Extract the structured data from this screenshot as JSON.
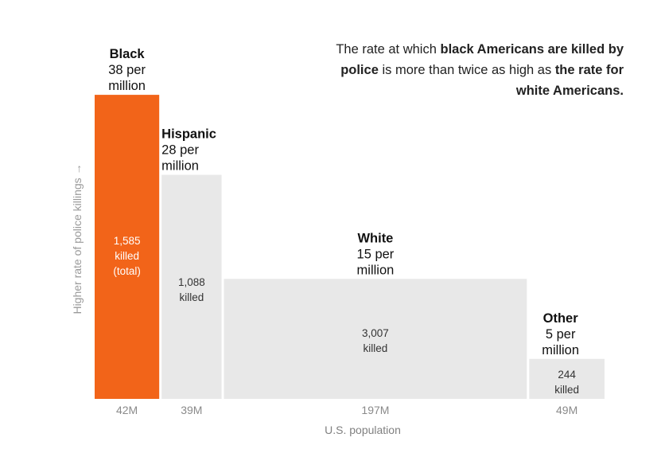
{
  "chart_data": {
    "type": "bar",
    "variable_width": true,
    "annotation": {
      "part1": "The rate at which ",
      "bold1": "black Americans are killed by police",
      "part2": " is more than twice as high as ",
      "bold2": "the rate for white Americans."
    },
    "ylabel": "Higher rate of police killings →",
    "xlabel": "U.S. population",
    "categories": [
      "Black",
      "Hispanic",
      "White",
      "Other"
    ],
    "rate_labels": [
      "38 per",
      "28 per",
      "15 per",
      "5 per"
    ],
    "rate_unit": "million",
    "rates_per_million": [
      38,
      28,
      15,
      5
    ],
    "populations_millions": [
      42,
      39,
      197,
      49
    ],
    "population_labels": [
      "42M",
      "39M",
      "197M",
      "49M"
    ],
    "killed": [
      1585,
      1088,
      3007,
      244
    ],
    "killed_labels": [
      "1,585",
      "1,088",
      "3,007",
      "244"
    ],
    "killed_caption": "killed",
    "total_note": "(total)",
    "colors": {
      "highlight": "#f26419",
      "bar": "#e8e8e8",
      "highlight_text": "#ffffff",
      "bar_text": "#333333",
      "label": "#111111"
    }
  }
}
